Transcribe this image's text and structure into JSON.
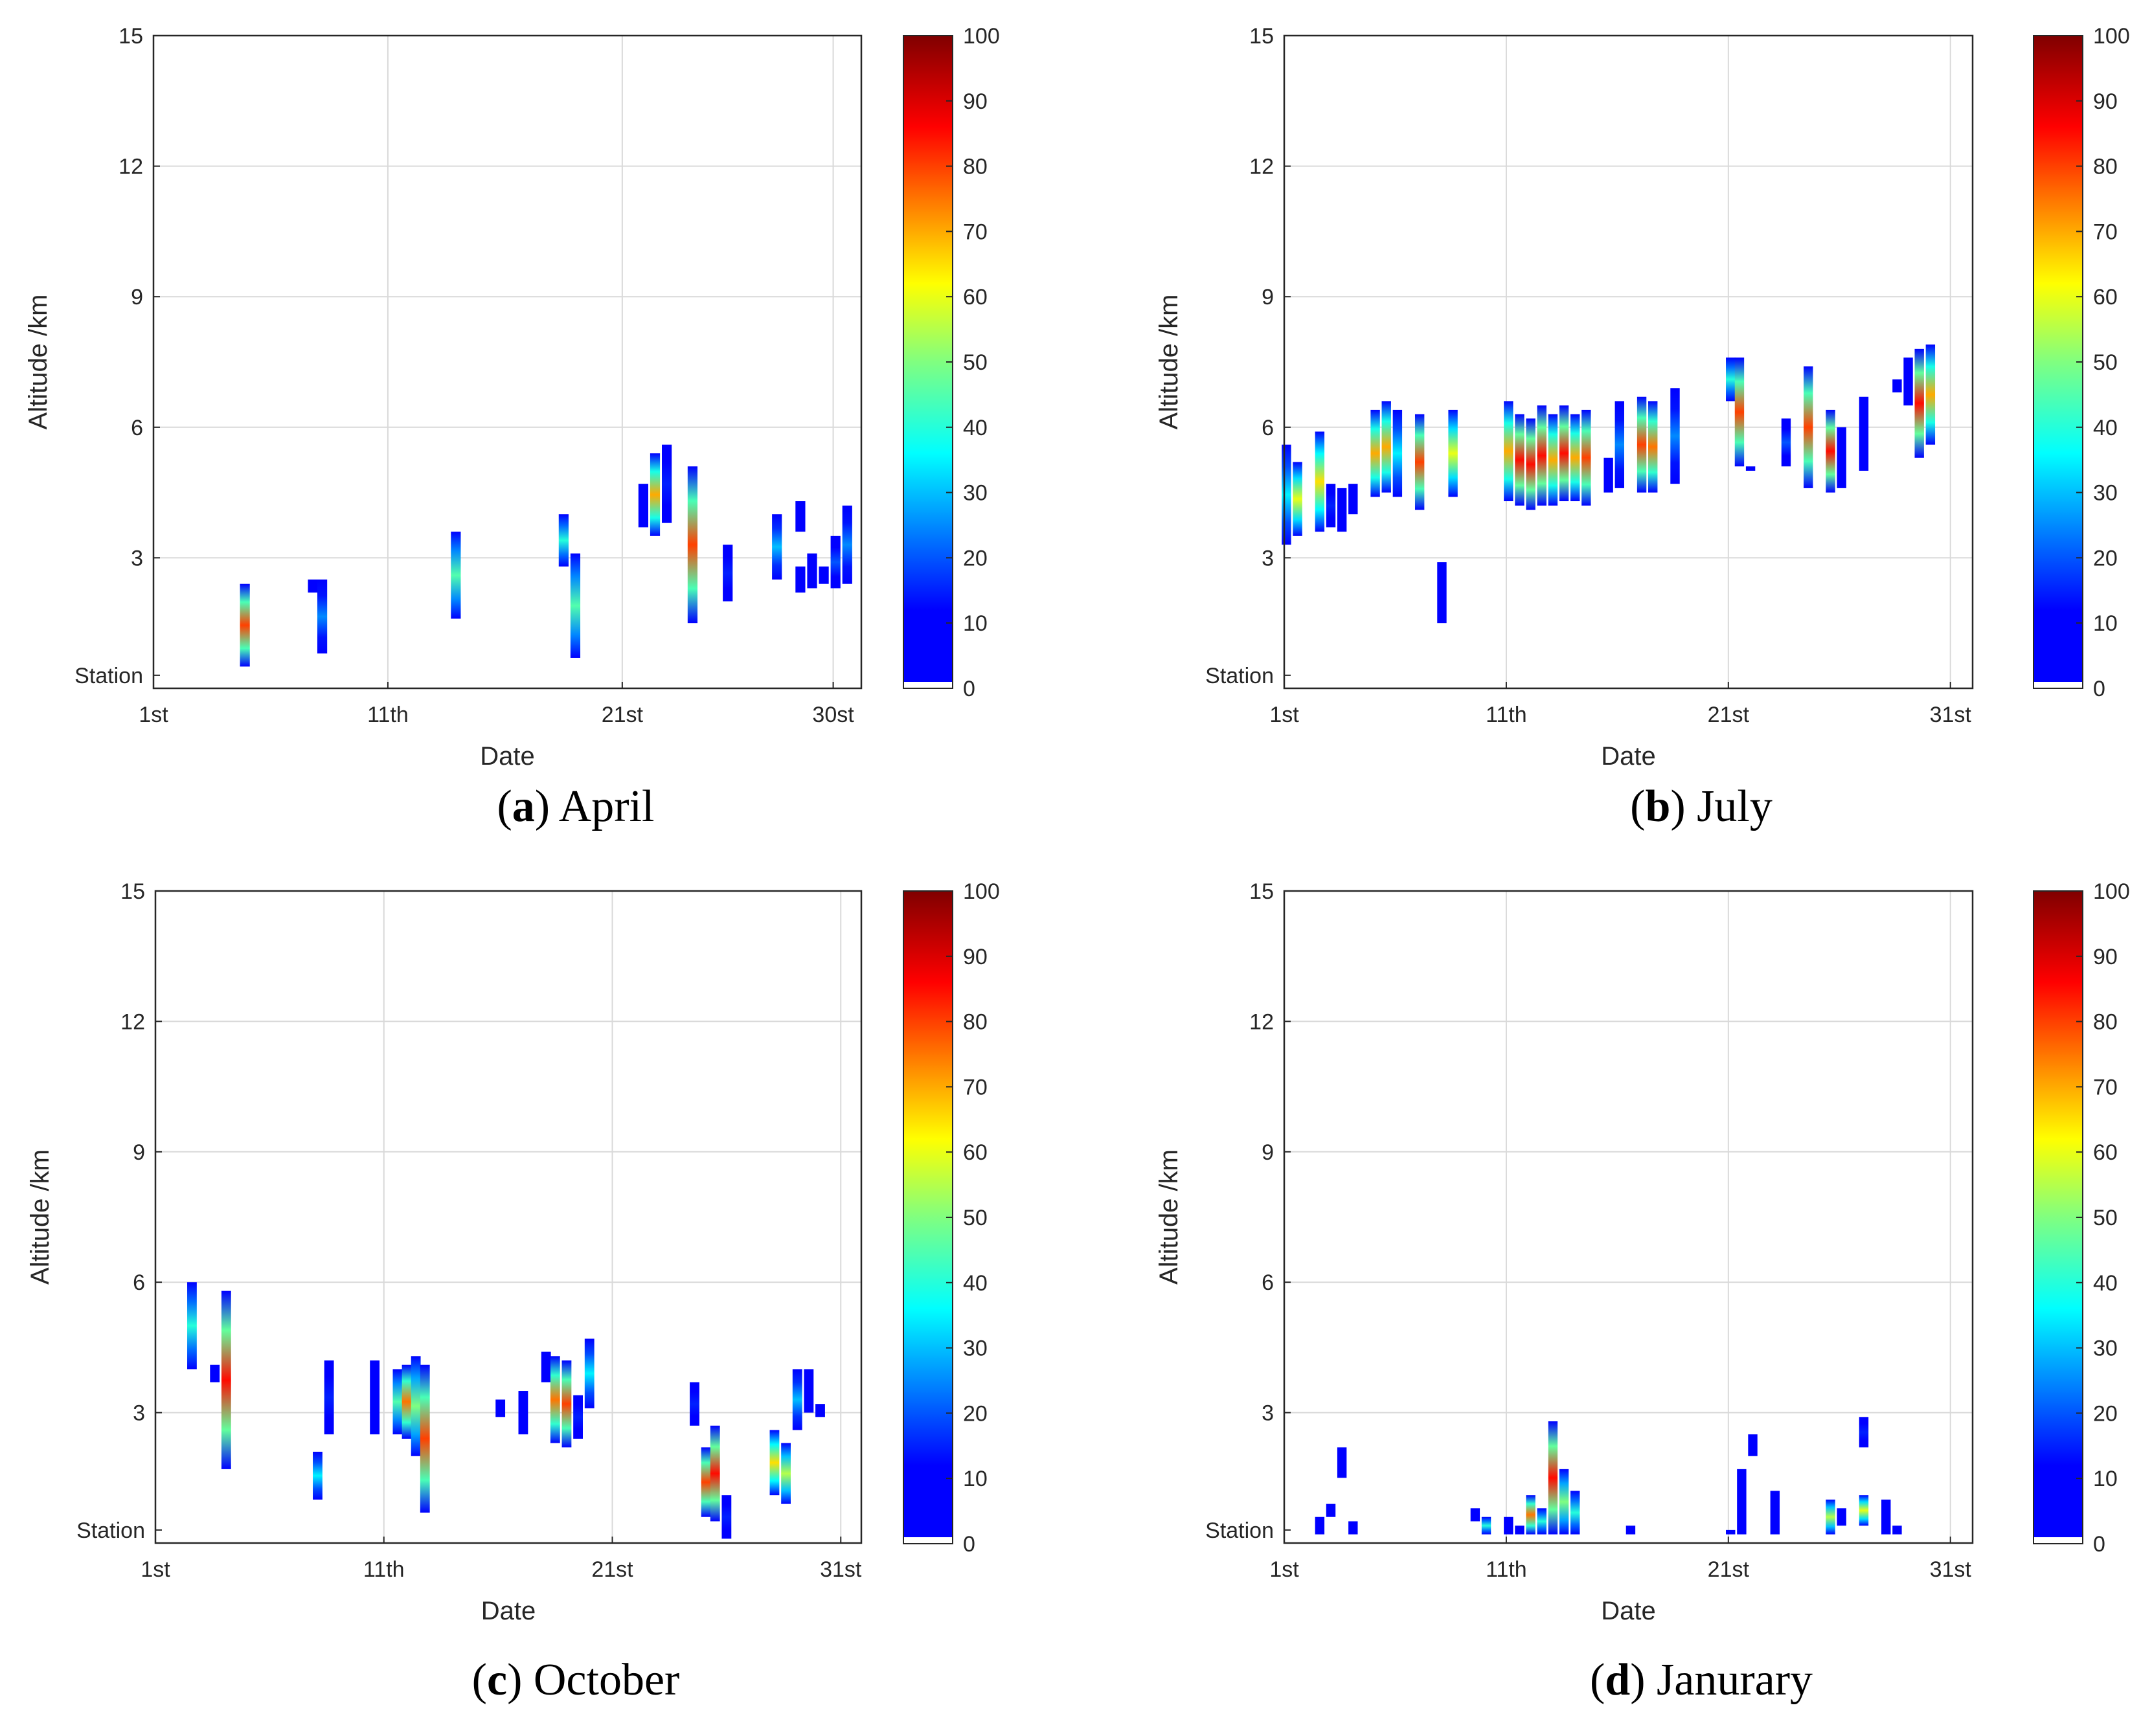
{
  "colormap": "jet",
  "colors": {
    "grid": "#d9d9d9",
    "axis": "#262626",
    "text": "#262626",
    "jet": [
      "#00008f",
      "#0000ff",
      "#0080ff",
      "#00ffff",
      "#80ff80",
      "#ffff00",
      "#ff8000",
      "#ff0000",
      "#800000"
    ]
  },
  "chart_data": [
    {
      "type": "heatmap",
      "title": "April",
      "caption": {
        "letter": "a",
        "text": "April"
      },
      "xlabel": "Date",
      "ylabel": "Altitude /km",
      "xlim": [
        1,
        31.2
      ],
      "ylim": [
        0,
        15
      ],
      "x_ticks": [
        {
          "v": 1,
          "label": "1st"
        },
        {
          "v": 11,
          "label": "11th"
        },
        {
          "v": 21,
          "label": "21st"
        },
        {
          "v": 30,
          "label": "30st"
        }
      ],
      "y_ticks": [
        {
          "v": 0.3,
          "label": "Station"
        },
        {
          "v": 3,
          "label": "3"
        },
        {
          "v": 6,
          "label": "6"
        },
        {
          "v": 9,
          "label": "9"
        },
        {
          "v": 12,
          "label": "12"
        },
        {
          "v": 15,
          "label": "15"
        }
      ],
      "colorbar": {
        "ticks": [
          "0",
          "10",
          "20",
          "30",
          "40",
          "50",
          "60",
          "70",
          "80",
          "90",
          "100"
        ],
        "min": 0,
        "max": 100
      },
      "columns": [
        {
          "x": 4.9,
          "y0": 0.5,
          "y1": 2.4,
          "peak": 80
        },
        {
          "x": 7.8,
          "y0": 2.2,
          "y1": 2.5,
          "peak": 5
        },
        {
          "x": 8.2,
          "y0": 0.8,
          "y1": 2.5,
          "peak": 25
        },
        {
          "x": 13.9,
          "y0": 1.6,
          "y1": 3.6,
          "peak": 45
        },
        {
          "x": 18.5,
          "y0": 2.8,
          "y1": 4.0,
          "peak": 40
        },
        {
          "x": 19.0,
          "y0": 0.7,
          "y1": 3.1,
          "peak": 45
        },
        {
          "x": 21.9,
          "y0": 3.7,
          "y1": 4.7,
          "peak": 10
        },
        {
          "x": 22.4,
          "y0": 3.5,
          "y1": 5.4,
          "peak": 70
        },
        {
          "x": 22.9,
          "y0": 3.8,
          "y1": 5.6,
          "peak": 15
        },
        {
          "x": 24.0,
          "y0": 1.5,
          "y1": 5.1,
          "peak": 80
        },
        {
          "x": 25.5,
          "y0": 2.0,
          "y1": 3.3,
          "peak": 15
        },
        {
          "x": 27.6,
          "y0": 2.5,
          "y1": 4.0,
          "peak": 30
        },
        {
          "x": 28.6,
          "y0": 3.6,
          "y1": 4.3,
          "peak": 10
        },
        {
          "x": 28.6,
          "y0": 2.2,
          "y1": 2.8,
          "peak": 10
        },
        {
          "x": 29.1,
          "y0": 2.3,
          "y1": 3.1,
          "peak": 10
        },
        {
          "x": 29.6,
          "y0": 2.4,
          "y1": 2.8,
          "peak": 10
        },
        {
          "x": 30.1,
          "y0": 2.3,
          "y1": 3.5,
          "peak": 20
        },
        {
          "x": 30.6,
          "y0": 2.4,
          "y1": 4.2,
          "peak": 25
        }
      ]
    },
    {
      "type": "heatmap",
      "title": "July",
      "caption": {
        "letter": "b",
        "text": "July"
      },
      "xlabel": "Date",
      "ylabel": "Altitude /km",
      "xlim": [
        1,
        32
      ],
      "ylim": [
        0,
        15
      ],
      "x_ticks": [
        {
          "v": 1,
          "label": "1st"
        },
        {
          "v": 11,
          "label": "11th"
        },
        {
          "v": 21,
          "label": "21st"
        },
        {
          "v": 31,
          "label": "31st"
        }
      ],
      "y_ticks": [
        {
          "v": 0.3,
          "label": "Station"
        },
        {
          "v": 3,
          "label": "3"
        },
        {
          "v": 6,
          "label": "6"
        },
        {
          "v": 9,
          "label": "9"
        },
        {
          "v": 12,
          "label": "12"
        },
        {
          "v": 15,
          "label": "15"
        }
      ],
      "colorbar": {
        "ticks": [
          "0",
          "10",
          "20",
          "30",
          "40",
          "50",
          "60",
          "70",
          "80",
          "90",
          "100"
        ],
        "min": 0,
        "max": 100
      },
      "columns": [
        {
          "x": 1.1,
          "y0": 3.3,
          "y1": 5.6,
          "peak": 35
        },
        {
          "x": 1.6,
          "y0": 3.5,
          "y1": 5.2,
          "peak": 60
        },
        {
          "x": 2.6,
          "y0": 3.6,
          "y1": 5.9,
          "peak": 65
        },
        {
          "x": 3.1,
          "y0": 3.7,
          "y1": 4.7,
          "peak": 15
        },
        {
          "x": 3.6,
          "y0": 3.6,
          "y1": 4.6,
          "peak": 10
        },
        {
          "x": 4.1,
          "y0": 4.0,
          "y1": 4.7,
          "peak": 10
        },
        {
          "x": 5.1,
          "y0": 4.4,
          "y1": 6.4,
          "peak": 70
        },
        {
          "x": 5.6,
          "y0": 4.5,
          "y1": 6.6,
          "peak": 70
        },
        {
          "x": 6.1,
          "y0": 4.4,
          "y1": 6.4,
          "peak": 35
        },
        {
          "x": 7.1,
          "y0": 4.1,
          "y1": 6.3,
          "peak": 80
        },
        {
          "x": 8.1,
          "y0": 1.5,
          "y1": 2.9,
          "peak": 5
        },
        {
          "x": 8.6,
          "y0": 4.4,
          "y1": 6.4,
          "peak": 60
        },
        {
          "x": 11.1,
          "y0": 4.3,
          "y1": 6.6,
          "peak": 70
        },
        {
          "x": 11.6,
          "y0": 4.2,
          "y1": 6.3,
          "peak": 85
        },
        {
          "x": 12.1,
          "y0": 4.1,
          "y1": 6.2,
          "peak": 85
        },
        {
          "x": 12.6,
          "y0": 4.2,
          "y1": 6.5,
          "peak": 85
        },
        {
          "x": 13.1,
          "y0": 4.2,
          "y1": 6.3,
          "peak": 70
        },
        {
          "x": 13.6,
          "y0": 4.3,
          "y1": 6.5,
          "peak": 85
        },
        {
          "x": 14.1,
          "y0": 4.3,
          "y1": 6.3,
          "peak": 70
        },
        {
          "x": 14.6,
          "y0": 4.2,
          "y1": 6.4,
          "peak": 80
        },
        {
          "x": 15.6,
          "y0": 4.5,
          "y1": 5.3,
          "peak": 10
        },
        {
          "x": 16.1,
          "y0": 4.6,
          "y1": 6.6,
          "peak": 25
        },
        {
          "x": 17.1,
          "y0": 4.5,
          "y1": 6.7,
          "peak": 80
        },
        {
          "x": 17.6,
          "y0": 4.5,
          "y1": 6.6,
          "peak": 75
        },
        {
          "x": 18.6,
          "y0": 4.7,
          "y1": 6.9,
          "peak": 25
        },
        {
          "x": 21.1,
          "y0": 6.6,
          "y1": 7.6,
          "peak": 40
        },
        {
          "x": 21.5,
          "y0": 5.1,
          "y1": 7.6,
          "peak": 80
        },
        {
          "x": 22.0,
          "y0": 5.0,
          "y1": 5.1,
          "peak": 5
        },
        {
          "x": 23.6,
          "y0": 5.1,
          "y1": 6.2,
          "peak": 20
        },
        {
          "x": 24.6,
          "y0": 4.6,
          "y1": 7.4,
          "peak": 80
        },
        {
          "x": 25.6,
          "y0": 4.5,
          "y1": 6.4,
          "peak": 85
        },
        {
          "x": 26.1,
          "y0": 4.6,
          "y1": 6.0,
          "peak": 10
        },
        {
          "x": 27.1,
          "y0": 5.0,
          "y1": 6.7,
          "peak": 10
        },
        {
          "x": 28.6,
          "y0": 6.8,
          "y1": 7.1,
          "peak": 5
        },
        {
          "x": 29.1,
          "y0": 6.5,
          "y1": 7.6,
          "peak": 10
        },
        {
          "x": 29.6,
          "y0": 5.3,
          "y1": 7.8,
          "peak": 85
        },
        {
          "x": 30.1,
          "y0": 5.6,
          "y1": 7.9,
          "peak": 70
        }
      ]
    },
    {
      "type": "heatmap",
      "title": "October",
      "caption": {
        "letter": "c",
        "text": "October"
      },
      "xlabel": "Date",
      "ylabel": "Altitude /km",
      "xlim": [
        1,
        31.9
      ],
      "ylim": [
        0,
        15
      ],
      "x_ticks": [
        {
          "v": 1,
          "label": "1st"
        },
        {
          "v": 11,
          "label": "11th"
        },
        {
          "v": 21,
          "label": "21st"
        },
        {
          "v": 31,
          "label": "31st"
        }
      ],
      "y_ticks": [
        {
          "v": 0.3,
          "label": "Station"
        },
        {
          "v": 3,
          "label": "3"
        },
        {
          "v": 6,
          "label": "6"
        },
        {
          "v": 9,
          "label": "9"
        },
        {
          "v": 12,
          "label": "12"
        },
        {
          "v": 15,
          "label": "15"
        }
      ],
      "colorbar": {
        "ticks": [
          "0",
          "10",
          "20",
          "30",
          "40",
          "50",
          "60",
          "70",
          "80",
          "90",
          "100"
        ],
        "min": 0,
        "max": 100
      },
      "columns": [
        {
          "x": 2.6,
          "y0": 4.0,
          "y1": 6.0,
          "peak": 40
        },
        {
          "x": 3.6,
          "y0": 3.7,
          "y1": 4.1,
          "peak": 5
        },
        {
          "x": 4.1,
          "y0": 1.7,
          "y1": 5.8,
          "peak": 85
        },
        {
          "x": 8.1,
          "y0": 1.0,
          "y1": 2.1,
          "peak": 35
        },
        {
          "x": 8.6,
          "y0": 2.5,
          "y1": 4.2,
          "peak": 15
        },
        {
          "x": 10.6,
          "y0": 2.5,
          "y1": 4.2,
          "peak": 10
        },
        {
          "x": 11.6,
          "y0": 2.5,
          "y1": 4.0,
          "peak": 45
        },
        {
          "x": 12.0,
          "y0": 2.4,
          "y1": 4.1,
          "peak": 75
        },
        {
          "x": 12.4,
          "y0": 2.0,
          "y1": 4.3,
          "peak": 50
        },
        {
          "x": 12.8,
          "y0": 0.7,
          "y1": 4.1,
          "peak": 80
        },
        {
          "x": 16.1,
          "y0": 2.9,
          "y1": 3.3,
          "peak": 5
        },
        {
          "x": 17.1,
          "y0": 2.5,
          "y1": 3.5,
          "peak": 10
        },
        {
          "x": 18.1,
          "y0": 3.7,
          "y1": 4.4,
          "peak": 10
        },
        {
          "x": 18.5,
          "y0": 2.3,
          "y1": 4.3,
          "peak": 75
        },
        {
          "x": 19.0,
          "y0": 2.2,
          "y1": 4.2,
          "peak": 80
        },
        {
          "x": 19.5,
          "y0": 2.4,
          "y1": 3.4,
          "peak": 15
        },
        {
          "x": 20.0,
          "y0": 3.1,
          "y1": 4.7,
          "peak": 35
        },
        {
          "x": 24.6,
          "y0": 2.7,
          "y1": 3.7,
          "peak": 15
        },
        {
          "x": 25.1,
          "y0": 0.6,
          "y1": 2.2,
          "peak": 80
        },
        {
          "x": 25.5,
          "y0": 0.5,
          "y1": 2.7,
          "peak": 85
        },
        {
          "x": 26.0,
          "y0": 0.1,
          "y1": 1.1,
          "peak": 15
        },
        {
          "x": 28.1,
          "y0": 1.1,
          "y1": 2.6,
          "peak": 65
        },
        {
          "x": 28.6,
          "y0": 0.9,
          "y1": 2.3,
          "peak": 55
        },
        {
          "x": 29.1,
          "y0": 2.6,
          "y1": 4.0,
          "peak": 30
        },
        {
          "x": 29.6,
          "y0": 3.0,
          "y1": 4.0,
          "peak": 10
        },
        {
          "x": 30.1,
          "y0": 2.9,
          "y1": 3.2,
          "peak": 5
        }
      ]
    },
    {
      "type": "heatmap",
      "title": "Janurary",
      "caption": {
        "letter": "d",
        "text": "Janurary"
      },
      "xlabel": "Date",
      "ylabel": "Altitude /km",
      "xlim": [
        1,
        32
      ],
      "ylim": [
        0,
        15
      ],
      "x_ticks": [
        {
          "v": 1,
          "label": "1st"
        },
        {
          "v": 11,
          "label": "11th"
        },
        {
          "v": 21,
          "label": "21st"
        },
        {
          "v": 31,
          "label": "31st"
        }
      ],
      "y_ticks": [
        {
          "v": 0.3,
          "label": "Station"
        },
        {
          "v": 3,
          "label": "3"
        },
        {
          "v": 6,
          "label": "6"
        },
        {
          "v": 9,
          "label": "9"
        },
        {
          "v": 12,
          "label": "12"
        },
        {
          "v": 15,
          "label": "15"
        }
      ],
      "colorbar": {
        "ticks": [
          "0",
          "10",
          "20",
          "30",
          "40",
          "50",
          "60",
          "70",
          "80",
          "90",
          "100"
        ],
        "min": 0,
        "max": 100
      },
      "columns": [
        {
          "x": 2.6,
          "y0": 0.2,
          "y1": 0.6,
          "peak": 5
        },
        {
          "x": 3.1,
          "y0": 0.6,
          "y1": 0.9,
          "peak": 5
        },
        {
          "x": 3.6,
          "y0": 1.5,
          "y1": 2.2,
          "peak": 5
        },
        {
          "x": 4.1,
          "y0": 0.2,
          "y1": 0.5,
          "peak": 5
        },
        {
          "x": 9.6,
          "y0": 0.5,
          "y1": 0.8,
          "peak": 5
        },
        {
          "x": 10.1,
          "y0": 0.2,
          "y1": 0.6,
          "peak": 40
        },
        {
          "x": 11.1,
          "y0": 0.2,
          "y1": 0.6,
          "peak": 10
        },
        {
          "x": 11.6,
          "y0": 0.2,
          "y1": 0.4,
          "peak": 5
        },
        {
          "x": 12.1,
          "y0": 0.2,
          "y1": 1.1,
          "peak": 75
        },
        {
          "x": 12.6,
          "y0": 0.2,
          "y1": 0.8,
          "peak": 40
        },
        {
          "x": 13.1,
          "y0": 0.2,
          "y1": 2.8,
          "peak": 85
        },
        {
          "x": 13.6,
          "y0": 0.2,
          "y1": 1.7,
          "peak": 50
        },
        {
          "x": 14.1,
          "y0": 0.2,
          "y1": 1.2,
          "peak": 40
        },
        {
          "x": 16.6,
          "y0": 0.2,
          "y1": 0.4,
          "peak": 5
        },
        {
          "x": 21.1,
          "y0": 0.2,
          "y1": 0.3,
          "peak": 5
        },
        {
          "x": 21.6,
          "y0": 0.2,
          "y1": 1.7,
          "peak": 10
        },
        {
          "x": 22.1,
          "y0": 2.0,
          "y1": 2.5,
          "peak": 5
        },
        {
          "x": 23.1,
          "y0": 0.2,
          "y1": 1.2,
          "peak": 5
        },
        {
          "x": 25.6,
          "y0": 0.2,
          "y1": 1.0,
          "peak": 55
        },
        {
          "x": 26.1,
          "y0": 0.4,
          "y1": 0.8,
          "peak": 5
        },
        {
          "x": 27.1,
          "y0": 0.4,
          "y1": 1.1,
          "peak": 60
        },
        {
          "x": 27.1,
          "y0": 2.2,
          "y1": 2.9,
          "peak": 15
        },
        {
          "x": 28.1,
          "y0": 0.2,
          "y1": 1.0,
          "peak": 5
        },
        {
          "x": 28.6,
          "y0": 0.2,
          "y1": 0.4,
          "peak": 5
        }
      ]
    }
  ]
}
